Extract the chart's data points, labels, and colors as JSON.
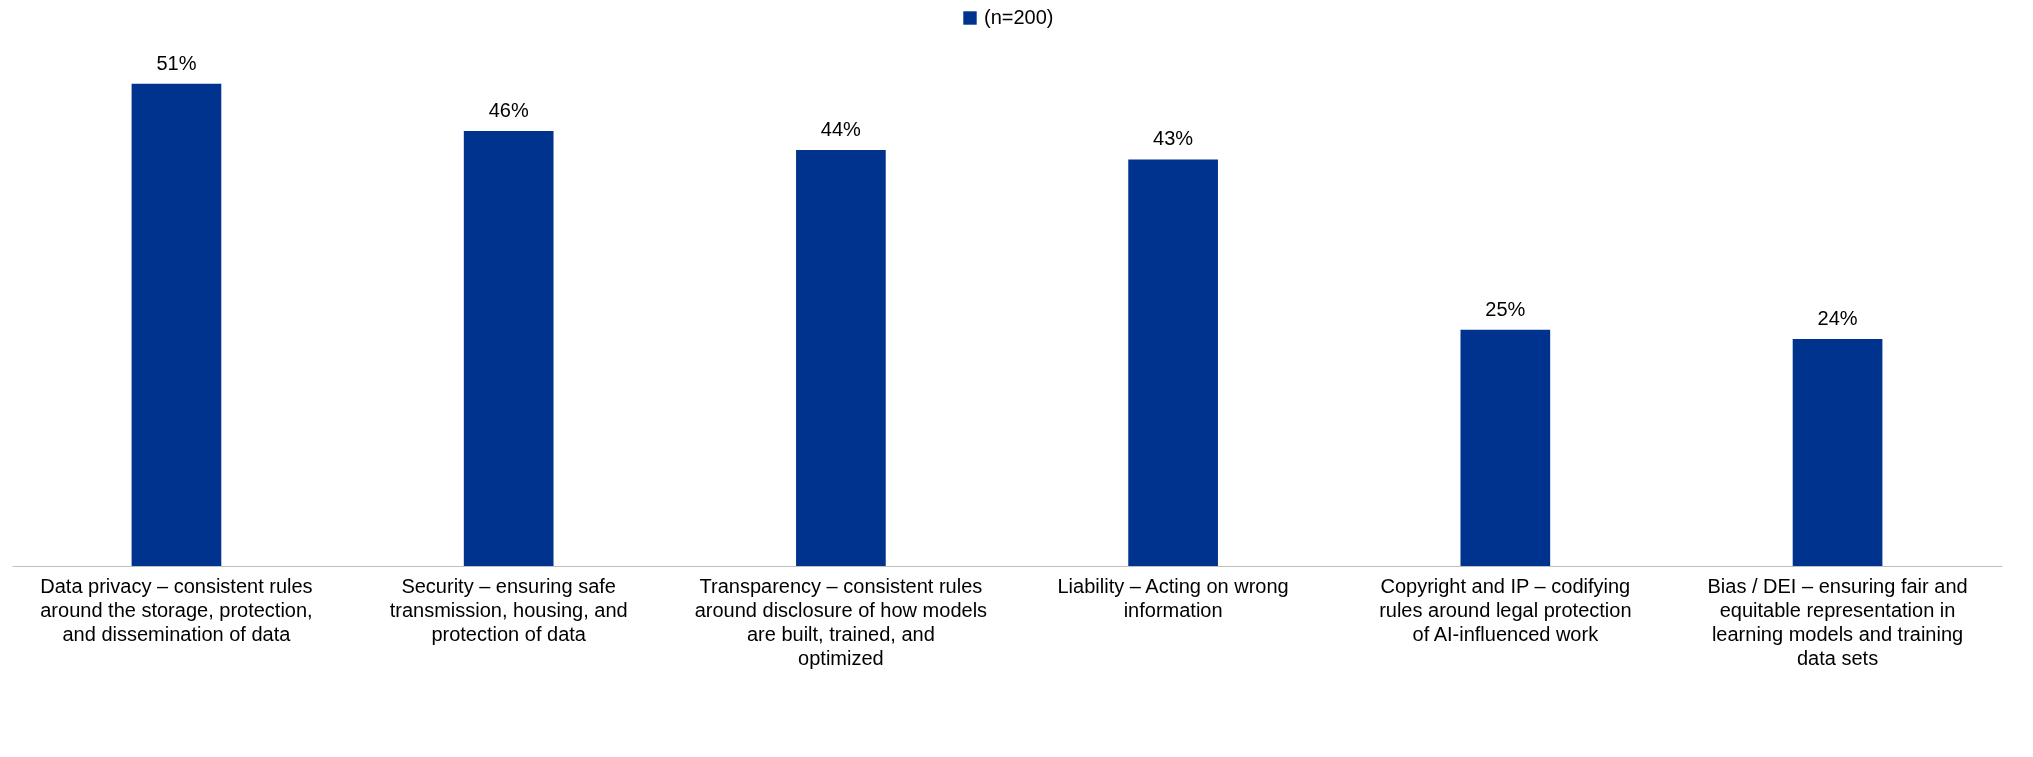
{
  "chart_data": {
    "type": "bar",
    "categories": [
      "Data privacy – consistent rules around the storage, protection, and dissemination of data",
      "Security – ensuring safe transmission, housing, and protection of data",
      "Transparency – consistent rules around disclosure of how models are built, trained, and optimized",
      "Liability – Acting on wrong information",
      "Copyright and IP – codifying rules around legal protection of AI-influenced work",
      "Bias / DEI – ensuring fair and equitable representation in learning models and training data sets"
    ],
    "series": [
      {
        "name": "(n=200)",
        "color": "#00338d",
        "values": [
          51,
          46,
          44,
          43,
          25,
          24
        ],
        "value_labels": [
          "51%",
          "46%",
          "44%",
          "43%",
          "25%",
          "24%"
        ]
      }
    ],
    "legend": "top"
  }
}
